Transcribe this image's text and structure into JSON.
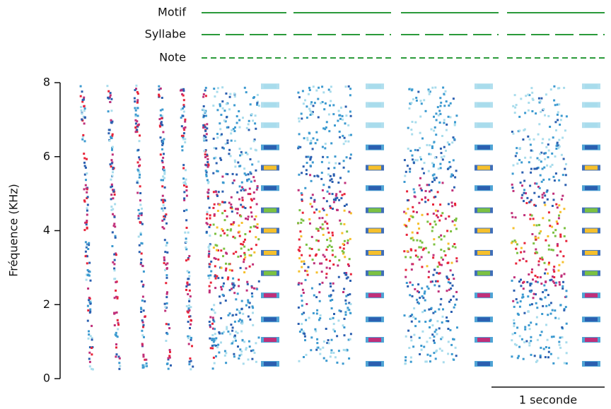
{
  "chart_data": {
    "type": "spectrogram",
    "ylabel": "Fréquence (KHz)",
    "ylim": [
      0,
      8
    ],
    "yticks": [
      0,
      2,
      4,
      6,
      8
    ],
    "tracks": [
      "Motif",
      "Syllabe",
      "Note"
    ],
    "scale_bar": "1 seconde"
  }
}
